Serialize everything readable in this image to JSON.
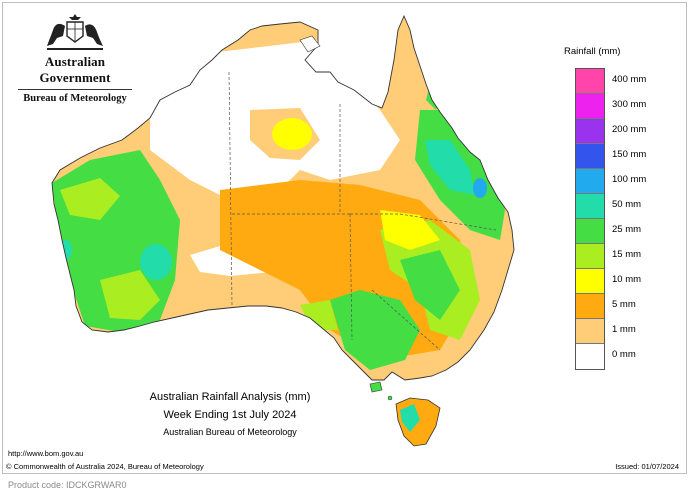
{
  "header": {
    "government": "Australian Government",
    "bureau": "Bureau of Meteorology"
  },
  "legend": {
    "title": "Rainfall (mm)",
    "classes": [
      {
        "label": "400 mm",
        "color": "#ff44aa"
      },
      {
        "label": "300 mm",
        "color": "#ee22ee"
      },
      {
        "label": "200 mm",
        "color": "#9933ee"
      },
      {
        "label": "150 mm",
        "color": "#3355ee"
      },
      {
        "label": "100 mm",
        "color": "#22aaee"
      },
      {
        "label": "50 mm",
        "color": "#22ddaa"
      },
      {
        "label": "25 mm",
        "color": "#44dd44"
      },
      {
        "label": "15 mm",
        "color": "#aaee22"
      },
      {
        "label": "10 mm",
        "color": "#ffff00"
      },
      {
        "label": "5 mm",
        "color": "#ffaa11"
      },
      {
        "label": "1 mm",
        "color": "#ffcc77"
      },
      {
        "label": "0 mm",
        "color": "#ffffff"
      }
    ]
  },
  "map": {
    "caption_title": "Australian Rainfall Analysis (mm)",
    "caption_period": "Week Ending 1st July 2024",
    "caption_source": "Australian Bureau of Meteorology"
  },
  "footer": {
    "url": "http://www.bom.gov.au",
    "copyright": "© Commonwealth of Australia 2024, Bureau of Meteorology",
    "issued": "Issued: 01/07/2024",
    "product_code": "Product code: IDCKGRWAR0"
  }
}
